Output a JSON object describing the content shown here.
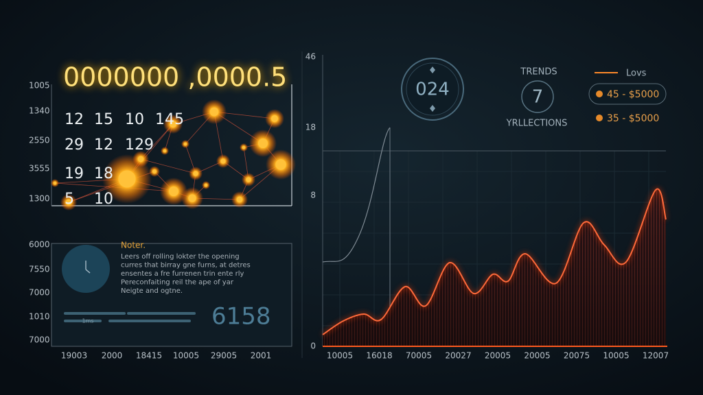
{
  "headline": "0000000 ,0000.5",
  "network_panel": {
    "axis_labels": [
      "1005",
      "1340",
      "2550",
      "3555",
      "1300"
    ],
    "rows": [
      [
        "12",
        "15",
        "10",
        "145"
      ],
      [
        "29",
        "12",
        "129"
      ],
      [
        "19",
        "18"
      ],
      [
        "5",
        "10"
      ]
    ]
  },
  "notes_panel": {
    "axis_labels": [
      "6000",
      "7550",
      "7000",
      "1010",
      "7000"
    ],
    "title": "Noter.",
    "lines": [
      "Leers off rolling lokter the opening",
      "curres that birray gne furns, at detres",
      "ensentes a fre furrenen trin ente rly",
      "Pereconfaiting reil the ape of yar",
      "Neigte and ogtne."
    ],
    "bar_label": "1ms",
    "value": "6158"
  },
  "left_x_labels": [
    "19003",
    "2000",
    "18415",
    "10005",
    "29005",
    "2001"
  ],
  "summary": {
    "badge": "024",
    "trends_title": "TRENDS",
    "trends_value": "7",
    "trends_caption": "YRLLECTIONS"
  },
  "legend": {
    "label": "Lovs",
    "items": [
      "45 - $5000",
      "35 - $5000"
    ]
  },
  "trend_chart": {
    "axis_labels": [
      "46",
      "18",
      "8",
      "0"
    ],
    "x_labels": [
      "10005",
      "16018",
      "70005",
      "20027",
      "20005",
      "20005",
      "20075",
      "10005",
      "12007"
    ]
  }
}
